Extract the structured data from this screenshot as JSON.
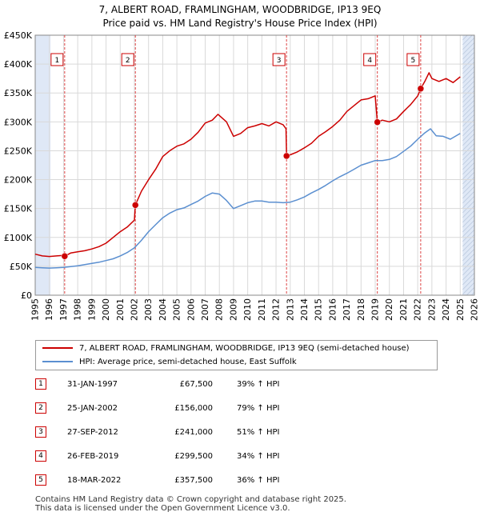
{
  "title_line1": "7, ALBERT ROAD, FRAMLINGHAM, WOODBRIDGE, IP13 9EQ",
  "title_line2": "Price paid vs. HM Land Registry's House Price Index (HPI)",
  "legend": {
    "property_label": "7, ALBERT ROAD, FRAMLINGHAM, WOODBRIDGE, IP13 9EQ (semi-detached house)",
    "hpi_label": "HPI: Average price, semi-detached house, East Suffolk"
  },
  "colors": {
    "property": "#cc0000",
    "hpi": "#5b8fd0",
    "shade": "#dfe8f6",
    "grid": "#d9d9d9",
    "marker_line": "#dd4444"
  },
  "sales": [
    {
      "num": "1",
      "date": "31-JAN-1997",
      "price": "£67,500",
      "hpi": "39% ↑ HPI"
    },
    {
      "num": "2",
      "date": "25-JAN-2002",
      "price": "£156,000",
      "hpi": "79% ↑ HPI"
    },
    {
      "num": "3",
      "date": "27-SEP-2012",
      "price": "£241,000",
      "hpi": "51% ↑ HPI"
    },
    {
      "num": "4",
      "date": "26-FEB-2019",
      "price": "£299,500",
      "hpi": "34% ↑ HPI"
    },
    {
      "num": "5",
      "date": "18-MAR-2022",
      "price": "£357,500",
      "hpi": "36% ↑ HPI"
    }
  ],
  "footer": {
    "line1": "Contains HM Land Registry data © Crown copyright and database right 2025.",
    "line2": "This data is licensed under the Open Government Licence v3.0."
  },
  "chart_data": {
    "type": "line",
    "title": "7, ALBERT ROAD, FRAMLINGHAM, WOODBRIDGE, IP13 9EQ — Price paid vs. HM Land Registry's House Price Index (HPI)",
    "xlim": [
      1995,
      2026
    ],
    "ylim": [
      0,
      450000
    ],
    "x_ticks": [
      1995,
      1996,
      1997,
      1998,
      1999,
      2000,
      2001,
      2002,
      2003,
      2004,
      2005,
      2006,
      2007,
      2008,
      2009,
      2010,
      2011,
      2012,
      2013,
      2014,
      2015,
      2016,
      2017,
      2018,
      2019,
      2020,
      2021,
      2022,
      2023,
      2024,
      2025,
      2026
    ],
    "y_ticks": [
      {
        "value": 0,
        "label": "£0"
      },
      {
        "value": 50000,
        "label": "£50K"
      },
      {
        "value": 100000,
        "label": "£100K"
      },
      {
        "value": 150000,
        "label": "£150K"
      },
      {
        "value": 200000,
        "label": "£200K"
      },
      {
        "value": 250000,
        "label": "£250K"
      },
      {
        "value": 300000,
        "label": "£300K"
      },
      {
        "value": 350000,
        "label": "£350K"
      },
      {
        "value": 400000,
        "label": "£400K"
      },
      {
        "value": 450000,
        "label": "£450K"
      }
    ],
    "shaded_regions": [
      [
        1995,
        1996.08
      ],
      [
        2025.17,
        2026
      ]
    ],
    "sale_markers": [
      {
        "num": "1",
        "x": 1997.08,
        "y": 67500
      },
      {
        "num": "2",
        "x": 2002.07,
        "y": 156000
      },
      {
        "num": "3",
        "x": 2012.74,
        "y": 241000
      },
      {
        "num": "4",
        "x": 2019.15,
        "y": 299500
      },
      {
        "num": "5",
        "x": 2022.21,
        "y": 357500
      }
    ],
    "series": [
      {
        "name": "7, ALBERT ROAD, FRAMLINGHAM, WOODBRIDGE, IP13 9EQ (semi-detached house)",
        "x": [
          1995.0,
          1995.5,
          1996.0,
          1996.5,
          1997.0,
          1997.08,
          1997.5,
          1998.0,
          1998.5,
          1999.0,
          1999.5,
          2000.0,
          2000.5,
          2001.0,
          2001.5,
          2002.0,
          2002.07,
          2002.5,
          2003.0,
          2003.5,
          2004.0,
          2004.5,
          2005.0,
          2005.5,
          2006.0,
          2006.5,
          2007.0,
          2007.5,
          2007.9,
          2008.5,
          2009.0,
          2009.5,
          2010.0,
          2010.5,
          2011.0,
          2011.5,
          2012.0,
          2012.5,
          2012.7,
          2012.74,
          2013.0,
          2013.5,
          2014.0,
          2014.5,
          2015.0,
          2015.5,
          2016.0,
          2016.5,
          2017.0,
          2017.5,
          2018.0,
          2018.5,
          2019.0,
          2019.15,
          2019.5,
          2020.0,
          2020.5,
          2021.0,
          2021.5,
          2022.0,
          2022.21,
          2022.5,
          2022.8,
          2023.0,
          2023.5,
          2024.0,
          2024.5,
          2025.0
        ],
        "y": [
          71000,
          68000,
          67000,
          68000,
          69000,
          67500,
          73000,
          75000,
          77000,
          80000,
          84000,
          90000,
          100000,
          110000,
          118000,
          130000,
          156000,
          180000,
          200000,
          218000,
          240000,
          250000,
          258000,
          262000,
          270000,
          282000,
          298000,
          303000,
          313000,
          300000,
          275000,
          280000,
          290000,
          293000,
          297000,
          293000,
          300000,
          295000,
          288000,
          241000,
          243000,
          248000,
          255000,
          263000,
          275000,
          283000,
          292000,
          303000,
          318000,
          328000,
          338000,
          340000,
          345000,
          299500,
          303000,
          300000,
          305000,
          318000,
          330000,
          345000,
          357500,
          370000,
          385000,
          375000,
          370000,
          375000,
          368000,
          378000
        ]
      },
      {
        "name": "HPI: Average price, semi-detached house, East Suffolk",
        "x": [
          1995.0,
          1995.5,
          1996.0,
          1996.5,
          1997.0,
          1997.5,
          1998.0,
          1998.5,
          1999.0,
          1999.5,
          2000.0,
          2000.5,
          2001.0,
          2001.5,
          2002.0,
          2002.5,
          2003.0,
          2003.5,
          2004.0,
          2004.5,
          2005.0,
          2005.5,
          2006.0,
          2006.5,
          2007.0,
          2007.5,
          2008.0,
          2008.5,
          2009.0,
          2009.5,
          2010.0,
          2010.5,
          2011.0,
          2011.5,
          2012.0,
          2012.5,
          2013.0,
          2013.5,
          2014.0,
          2014.5,
          2015.0,
          2015.5,
          2016.0,
          2016.5,
          2017.0,
          2017.5,
          2018.0,
          2018.5,
          2019.0,
          2019.5,
          2020.0,
          2020.5,
          2021.0,
          2021.5,
          2022.0,
          2022.5,
          2022.9,
          2023.3,
          2023.8,
          2024.3,
          2024.8,
          2025.0
        ],
        "y": [
          48000,
          47500,
          47000,
          47500,
          48000,
          49500,
          51000,
          53000,
          55000,
          57000,
          60000,
          63000,
          68000,
          74000,
          82000,
          95000,
          110000,
          122000,
          134000,
          142000,
          148000,
          151000,
          157000,
          163000,
          171000,
          177000,
          175000,
          164000,
          150000,
          155000,
          160000,
          163000,
          163000,
          161000,
          161000,
          160000,
          161000,
          165000,
          170000,
          177000,
          183000,
          190000,
          198000,
          205000,
          211000,
          218000,
          225000,
          229000,
          233000,
          233000,
          235000,
          240000,
          249000,
          258000,
          270000,
          281000,
          288000,
          276000,
          275000,
          270000,
          277000,
          280000
        ]
      }
    ]
  }
}
